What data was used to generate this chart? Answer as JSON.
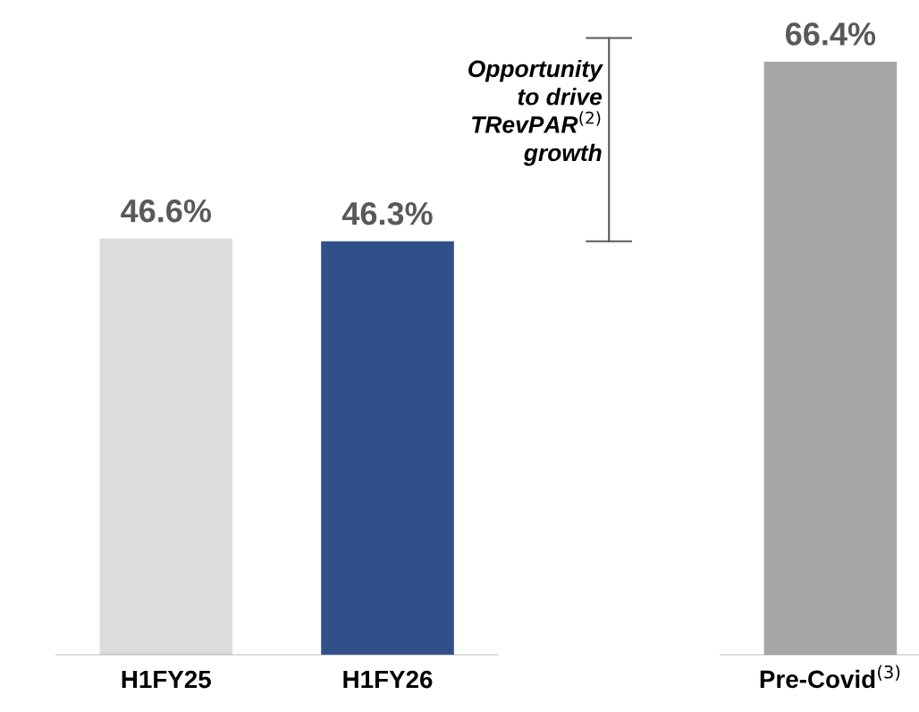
{
  "chart_data": {
    "type": "bar",
    "categories": [
      "H1FY25",
      "H1FY26",
      null,
      "Pre-Covid$^{(3)}$"
    ],
    "values": [
      46.6,
      46.3,
      null,
      66.4
    ],
    "colors": [
      "#dcdcdc",
      "#31508a",
      null,
      "#a6a6a6"
    ],
    "value_labels": [
      "46.6%",
      "46.3%",
      null,
      "66.4%"
    ],
    "annotations": [
      "Opportunity\nto drive\nTRevPAR$^{(2)}$\ngrowth"
    ],
    "grid": false,
    "legend": false
  }
}
